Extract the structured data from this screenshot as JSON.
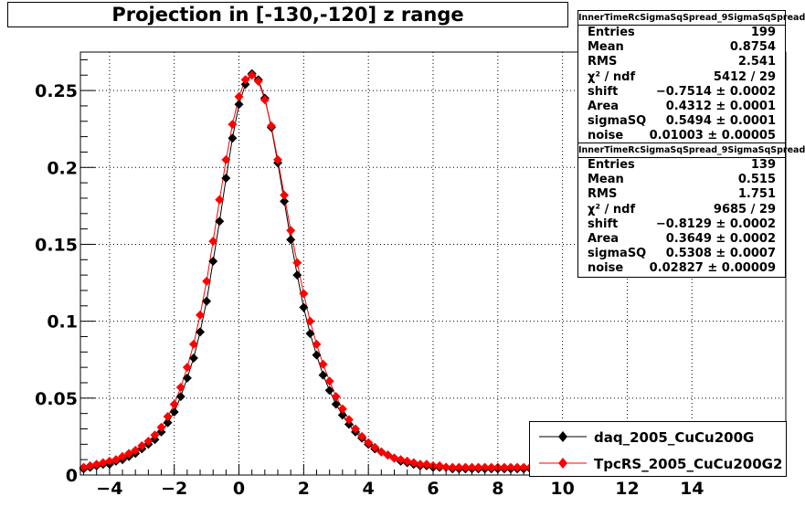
{
  "title": "Projection in [-130,-120] z range",
  "chart_data": {
    "type": "scatter",
    "xlim": [
      -4.9,
      16.9
    ],
    "ylim": [
      0,
      0.275
    ],
    "x_ticks": [
      -4,
      -2,
      0,
      2,
      4,
      6,
      8,
      10,
      12,
      14
    ],
    "x_tick_labels": [
      "−4",
      "−2",
      "0",
      "2",
      "4",
      "6",
      "8",
      "10",
      "12",
      "14"
    ],
    "y_ticks": [
      0,
      0.05,
      0.1,
      0.15,
      0.2,
      0.25
    ],
    "y_tick_labels": [
      "0",
      "0.05",
      "0.1",
      "0.15",
      "0.2",
      "0.25"
    ],
    "grid": true,
    "legend_position": "bottom-right",
    "series": [
      {
        "name": "daq_2005_CuCu200G",
        "color": "#000000",
        "marker": "diamond",
        "fit": {
          "shift": -0.7514,
          "area": 0.4312,
          "sigmaSQ": 0.5494,
          "noise": 0.01003
        },
        "x": [
          -4.8,
          -4.6,
          -4.4,
          -4.2,
          -4.0,
          -3.8,
          -3.6,
          -3.4,
          -3.2,
          -3.0,
          -2.8,
          -2.6,
          -2.4,
          -2.2,
          -2.0,
          -1.8,
          -1.6,
          -1.4,
          -1.2,
          -1.0,
          -0.8,
          -0.6,
          -0.4,
          -0.2,
          0.0,
          0.2,
          0.4,
          0.6,
          0.8,
          1.0,
          1.2,
          1.4,
          1.6,
          1.8,
          2.0,
          2.2,
          2.4,
          2.6,
          2.8,
          3.0,
          3.2,
          3.4,
          3.6,
          3.8,
          4.0,
          4.2,
          4.4,
          4.6,
          4.8,
          5.0,
          5.2,
          5.4,
          5.6,
          5.8,
          6.0,
          6.2,
          6.4,
          6.6,
          6.8,
          7.0,
          7.2,
          7.4,
          7.6,
          7.8,
          8.0,
          8.2,
          8.4,
          8.6,
          8.8,
          9.0
        ],
        "y": [
          0.004,
          0.005,
          0.006,
          0.007,
          0.007,
          0.009,
          0.01,
          0.012,
          0.014,
          0.017,
          0.02,
          0.023,
          0.028,
          0.034,
          0.041,
          0.051,
          0.063,
          0.076,
          0.093,
          0.113,
          0.139,
          0.165,
          0.193,
          0.219,
          0.241,
          0.254,
          0.261,
          0.257,
          0.245,
          0.226,
          0.203,
          0.178,
          0.153,
          0.13,
          0.109,
          0.092,
          0.078,
          0.065,
          0.055,
          0.046,
          0.039,
          0.033,
          0.028,
          0.024,
          0.02,
          0.017,
          0.015,
          0.013,
          0.011,
          0.009,
          0.008,
          0.007,
          0.006,
          0.006,
          0.005,
          0.005,
          0.005,
          0.004,
          0.004,
          0.004,
          0.004,
          0.004,
          0.004,
          0.004,
          0.004,
          0.004,
          0.004,
          0.004,
          0.004,
          0.004
        ]
      },
      {
        "name": "TpcRS_2005_CuCu200G2",
        "color": "#ff0000",
        "marker": "diamond",
        "fit": {
          "shift": -0.8129,
          "area": 0.3649,
          "sigmaSQ": 0.5308,
          "noise": 0.02827
        },
        "x": [
          -4.8,
          -4.6,
          -4.4,
          -4.2,
          -4.0,
          -3.8,
          -3.6,
          -3.4,
          -3.2,
          -3.0,
          -2.8,
          -2.6,
          -2.4,
          -2.2,
          -2.0,
          -1.8,
          -1.6,
          -1.4,
          -1.2,
          -1.0,
          -0.8,
          -0.6,
          -0.4,
          -0.2,
          0.0,
          0.2,
          0.4,
          0.6,
          0.8,
          1.0,
          1.2,
          1.4,
          1.6,
          1.8,
          2.0,
          2.2,
          2.4,
          2.6,
          2.8,
          3.0,
          3.2,
          3.4,
          3.6,
          3.8,
          4.0,
          4.2,
          4.4,
          4.6,
          4.8,
          5.0,
          5.2,
          5.4,
          5.6,
          5.8,
          6.0,
          6.2,
          6.4,
          6.6,
          6.8,
          7.0,
          7.2,
          7.4,
          7.6,
          7.8,
          8.0,
          8.2,
          8.4,
          8.6,
          8.8,
          9.0
        ],
        "y": [
          0.005,
          0.006,
          0.007,
          0.008,
          0.009,
          0.01,
          0.012,
          0.014,
          0.016,
          0.019,
          0.022,
          0.026,
          0.031,
          0.038,
          0.046,
          0.057,
          0.07,
          0.085,
          0.104,
          0.126,
          0.152,
          0.179,
          0.205,
          0.228,
          0.246,
          0.257,
          0.26,
          0.256,
          0.244,
          0.227,
          0.205,
          0.182,
          0.159,
          0.138,
          0.118,
          0.1,
          0.085,
          0.072,
          0.061,
          0.051,
          0.043,
          0.036,
          0.03,
          0.025,
          0.021,
          0.018,
          0.015,
          0.013,
          0.011,
          0.01,
          0.009,
          0.008,
          0.007,
          0.007,
          0.006,
          0.006,
          0.005,
          0.005,
          0.005,
          0.005,
          0.005,
          0.005,
          0.005,
          0.005,
          0.005,
          0.005,
          0.005,
          0.005,
          0.005,
          0.005
        ]
      }
    ]
  },
  "stats": [
    {
      "header": "InnerTimeRcSigmaSqSpread_9SigmaSqSpread",
      "rows": [
        {
          "label": "Entries",
          "value": "199"
        },
        {
          "label": "Mean",
          "value": "0.8754"
        },
        {
          "label": "RMS",
          "value": "2.541"
        },
        {
          "label": "χ² / ndf",
          "value": "5412 / 29"
        },
        {
          "label": "shift",
          "value": "−0.7514 ± 0.0002"
        },
        {
          "label": "Area",
          "value": "0.4312 ± 0.0001"
        },
        {
          "label": "sigmaSQ",
          "value": "0.5494 ± 0.0001"
        },
        {
          "label": "noise",
          "value": "0.01003 ± 0.00005"
        }
      ]
    },
    {
      "header": "InnerTimeRcSigmaSqSpread_9SigmaSqSpread",
      "rows": [
        {
          "label": "Entries",
          "value": "139"
        },
        {
          "label": "Mean",
          "value": "0.515"
        },
        {
          "label": "RMS",
          "value": "1.751"
        },
        {
          "label": "χ² / ndf",
          "value": "9685 / 29"
        },
        {
          "label": "shift",
          "value": "−0.8129 ± 0.0002"
        },
        {
          "label": "Area",
          "value": "0.3649 ± 0.0002"
        },
        {
          "label": "sigmaSQ",
          "value": "0.5308 ± 0.0007"
        },
        {
          "label": "noise",
          "value": "0.02827 ± 0.00009"
        }
      ]
    }
  ],
  "legend": [
    {
      "label": "daq_2005_CuCu200G",
      "color": "#000000"
    },
    {
      "label": "TpcRS_2005_CuCu200G2",
      "color": "#ff0000"
    }
  ]
}
